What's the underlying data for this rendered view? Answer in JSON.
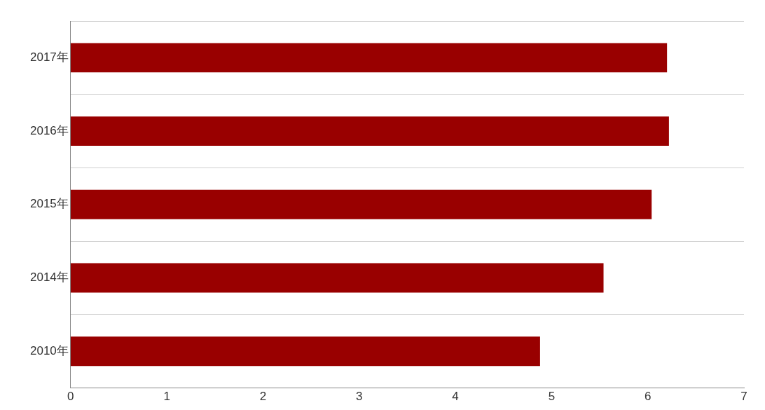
{
  "chart_data": {
    "type": "bar",
    "orientation": "horizontal",
    "categories": [
      "2017年",
      "2016年",
      "2015年",
      "2014年",
      "2010年"
    ],
    "values": [
      6.2,
      6.22,
      6.04,
      5.54,
      4.88
    ],
    "color": "#990000",
    "xlim": [
      0,
      7
    ],
    "xticks": [
      0,
      1,
      2,
      3,
      4,
      5,
      6,
      7
    ],
    "grid": "y"
  }
}
